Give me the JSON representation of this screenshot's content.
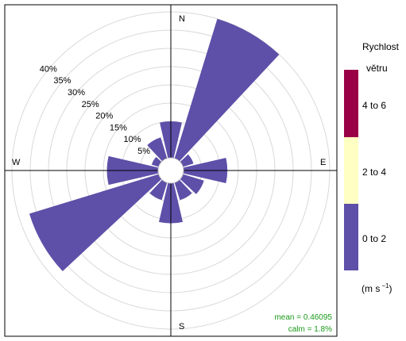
{
  "chart_data": {
    "type": "windrose",
    "unit": "%",
    "directions_deg": [
      0,
      30,
      60,
      90,
      120,
      150,
      180,
      210,
      240,
      270,
      300,
      330
    ],
    "frequencies": [
      10,
      40,
      3,
      12,
      6,
      5,
      11,
      5,
      37,
      14,
      2,
      6
    ],
    "speed_bin": "0 to 2",
    "radial_ticks": [
      5,
      10,
      15,
      20,
      25,
      30,
      35,
      40
    ],
    "radial_tick_labels": [
      "5%",
      "10%",
      "15%",
      "20%",
      "25%",
      "30%",
      "35%",
      "40%"
    ],
    "compass": {
      "n": "N",
      "e": "E",
      "s": "S",
      "w": "W"
    },
    "stats": {
      "mean": "mean = 0.46095",
      "calm": "calm = 1.8%"
    },
    "legend": {
      "title_line1": "Rychlost",
      "title_line2": "větru",
      "unit_text": "(m s",
      "unit_sup": "−1",
      "unit_close": ")",
      "bins": [
        {
          "label": "4 to 6",
          "color": "#9a0046"
        },
        {
          "label": "2 to 4",
          "color": "#ffffc4"
        },
        {
          "label": "0 to 2",
          "color": "#5e4fa8"
        }
      ]
    },
    "bar_color": "#5e4fa8"
  }
}
